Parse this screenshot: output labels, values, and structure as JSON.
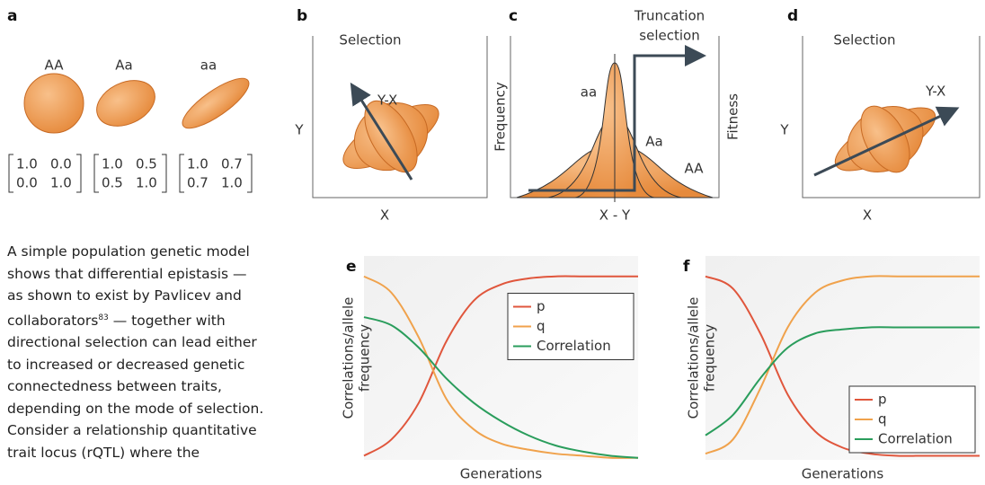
{
  "panel_a": {
    "label": "a",
    "genotypes": [
      {
        "name": "AA",
        "matrix": [
          [
            "1.0",
            "0.0"
          ],
          [
            "0.0",
            "1.0"
          ]
        ]
      },
      {
        "name": "Aa",
        "matrix": [
          [
            "1.0",
            "0.5"
          ],
          [
            "0.5",
            "1.0"
          ]
        ]
      },
      {
        "name": "aa",
        "matrix": [
          [
            "1.0",
            "0.7"
          ],
          [
            "0.7",
            "1.0"
          ]
        ]
      }
    ]
  },
  "panel_b": {
    "label": "b",
    "title": "Selection",
    "x_label": "X",
    "y_label": "Y",
    "arrow_label": "Y-X"
  },
  "panel_c": {
    "label": "c",
    "title": [
      "Truncation",
      "selection"
    ],
    "y_label": "Frequency",
    "y2_label": "Fitness",
    "x_label": "X - Y",
    "curve_labels": [
      "aa",
      "Aa",
      "AA"
    ]
  },
  "panel_d": {
    "label": "d",
    "title": "Selection",
    "x_label": "X",
    "y_label": "Y",
    "arrow_label": "Y-X"
  },
  "paragraph": {
    "lines": [
      "A simple population genetic model",
      "shows that differential epistasis —",
      "as shown to exist by Pavlicev and"
    ],
    "citation_line": {
      "before": "collaborators",
      "sup": "83",
      "after": " — together with"
    },
    "rest": [
      "directional selection can lead either",
      "to increased or decreased genetic",
      "connectedness between traits,",
      "depending on the mode of selection.",
      "Consider a relationship quantitative",
      "trait locus (rQTL) where the"
    ]
  },
  "chart_data": [
    {
      "type": "line",
      "label": "e",
      "x_label": "Generations",
      "y_label": [
        "Correlations/allele",
        "frequency"
      ],
      "x": [
        0,
        1,
        2,
        3,
        4,
        5,
        6,
        7,
        8,
        9,
        10
      ],
      "xlim": [
        0,
        10
      ],
      "ylim": [
        0,
        1
      ],
      "legend": "center right",
      "series": [
        {
          "name": "p",
          "color": "#e0563c",
          "values": [
            0.02,
            0.1,
            0.28,
            0.58,
            0.78,
            0.86,
            0.89,
            0.9,
            0.9,
            0.9,
            0.9
          ]
        },
        {
          "name": "q",
          "color": "#f0a24c",
          "values": [
            0.9,
            0.82,
            0.6,
            0.3,
            0.15,
            0.08,
            0.05,
            0.03,
            0.02,
            0.01,
            0.01
          ]
        },
        {
          "name": "Correlation",
          "color": "#2a9d5c",
          "values": [
            0.7,
            0.66,
            0.55,
            0.4,
            0.28,
            0.19,
            0.12,
            0.07,
            0.04,
            0.02,
            0.01
          ]
        }
      ]
    },
    {
      "type": "line",
      "label": "f",
      "x_label": "Generations",
      "y_label": [
        "Correlations/allele",
        "frequency"
      ],
      "x": [
        0,
        1,
        2,
        3,
        4,
        5,
        6,
        7,
        8,
        9,
        10
      ],
      "xlim": [
        0,
        10
      ],
      "ylim": [
        0,
        1
      ],
      "legend": "lower right",
      "series": [
        {
          "name": "p",
          "color": "#e0563c",
          "values": [
            0.9,
            0.84,
            0.62,
            0.32,
            0.14,
            0.06,
            0.03,
            0.02,
            0.02,
            0.02,
            0.02
          ]
        },
        {
          "name": "q",
          "color": "#f0a24c",
          "values": [
            0.03,
            0.1,
            0.35,
            0.65,
            0.82,
            0.88,
            0.9,
            0.9,
            0.9,
            0.9,
            0.9
          ]
        },
        {
          "name": "Correlation",
          "color": "#2a9d5c",
          "values": [
            0.12,
            0.22,
            0.4,
            0.55,
            0.62,
            0.64,
            0.65,
            0.65,
            0.65,
            0.65,
            0.65
          ]
        }
      ]
    }
  ]
}
